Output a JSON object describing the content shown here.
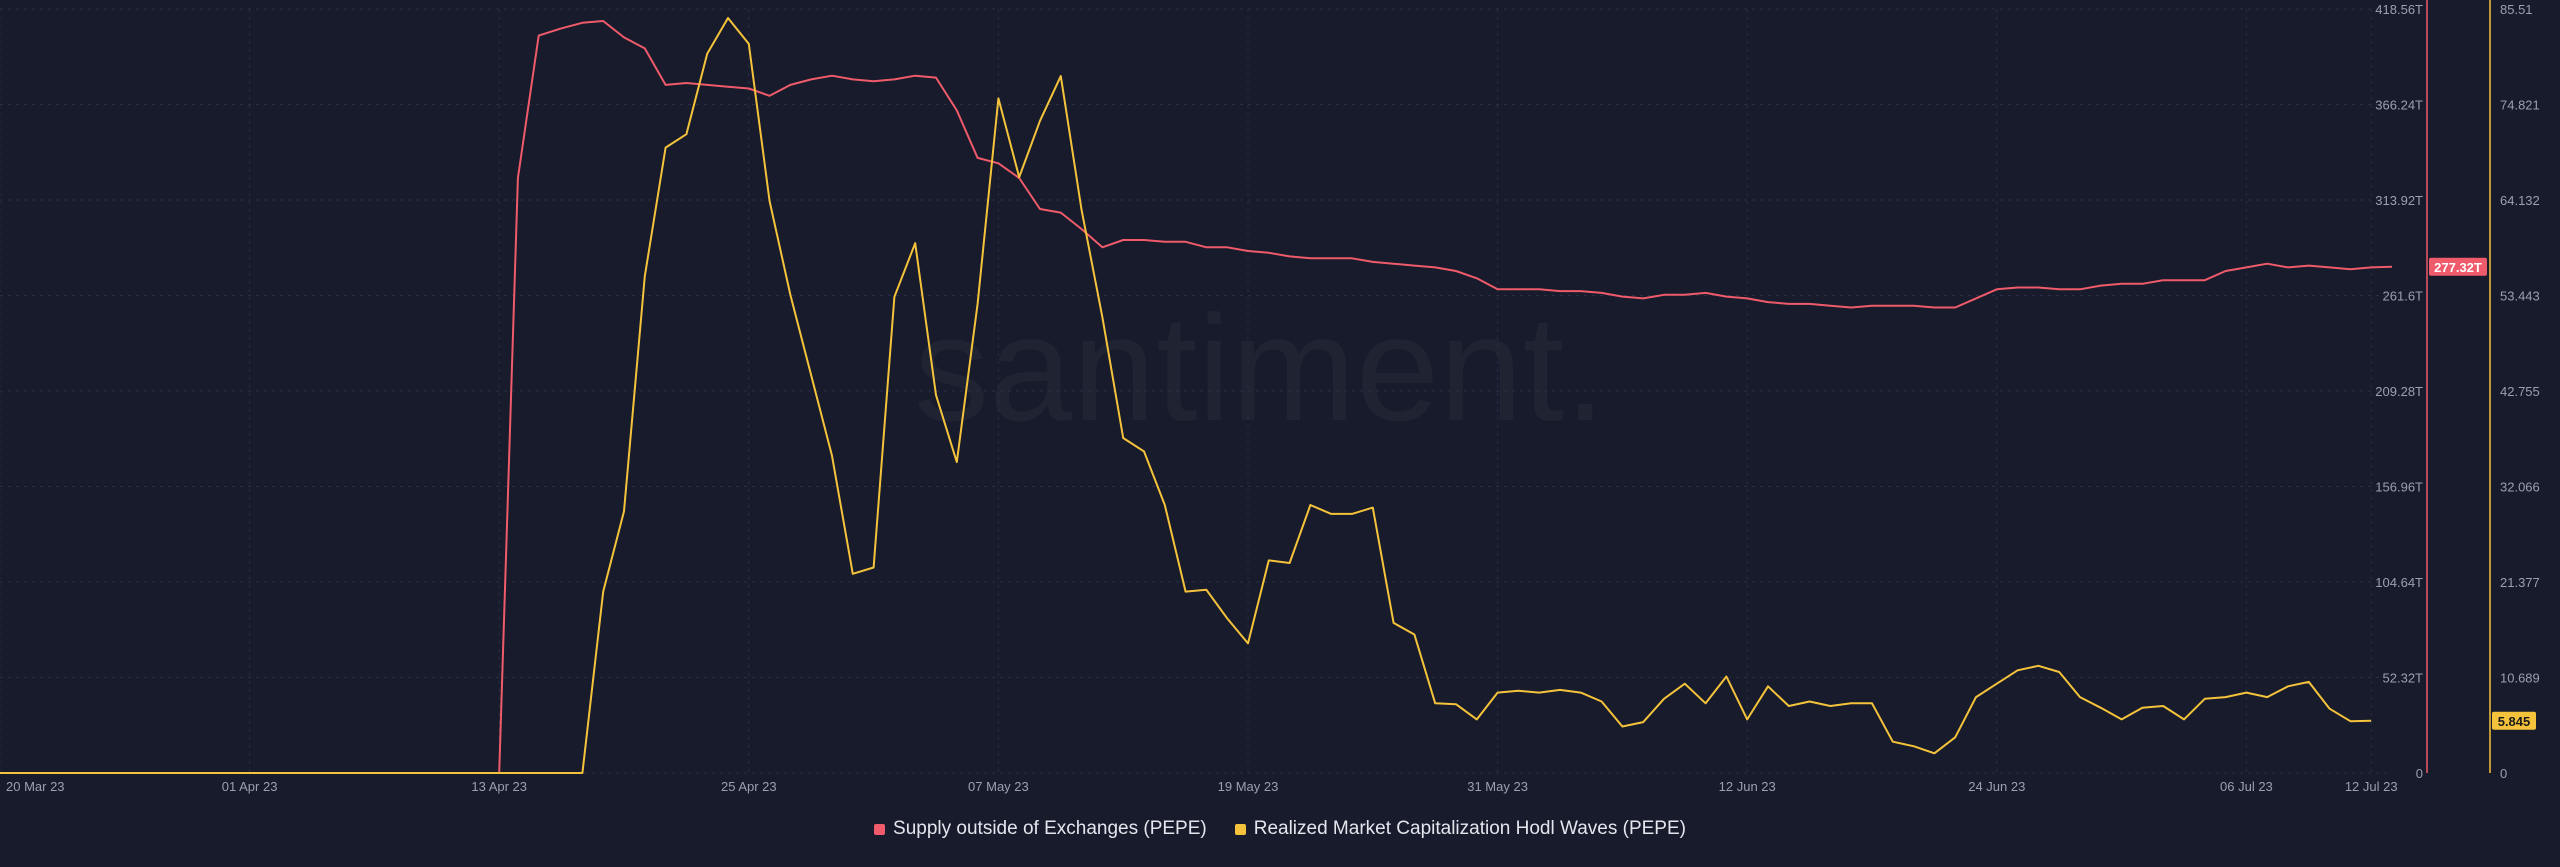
{
  "watermark": "santiment.",
  "legend": [
    {
      "name": "Supply outside of Exchanges (PEPE)",
      "color": "#ef5b6b"
    },
    {
      "name": "Realized Market Capitalization Hodl Waves (PEPE)",
      "color": "#f5c33b"
    }
  ],
  "colors": {
    "background": "#171b2b",
    "grid": "#2a2f45",
    "axis_text": "#9aa0b0",
    "supply": "#ef5b6b",
    "hodl": "#f5c33b"
  },
  "chart_data": {
    "type": "line",
    "x_tick_labels": [
      "20 Mar 23",
      "01 Apr 23",
      "13 Apr 23",
      "25 Apr 23",
      "07 May 23",
      "19 May 23",
      "31 May 23",
      "12 Jun 23",
      "24 Jun 23",
      "06 Jul 23",
      "12 Jul 23"
    ],
    "x_tick_days": [
      0,
      12,
      24,
      36,
      48,
      60,
      72,
      84,
      96,
      108,
      114
    ],
    "x_range_days": [
      0,
      115
    ],
    "grid": true,
    "legend_position": "bottom",
    "axes": {
      "left_ticks": [
        "418.56T",
        "366.24T",
        "313.92T",
        "261.6T",
        "209.28T",
        "156.96T",
        "104.64T",
        "52.32T",
        "0"
      ],
      "left_range": [
        0,
        418.56
      ],
      "right_ticks": [
        "85.51",
        "74.821",
        "64.132",
        "53.443",
        "42.755",
        "32.066",
        "21.377",
        "10.689",
        "0"
      ],
      "right_range": [
        0,
        85.51
      ]
    },
    "series": [
      {
        "name": "Supply outside of Exchanges (PEPE)",
        "axis": "left",
        "last_value_label": "277.32T",
        "points": [
          [
            0,
            0
          ],
          [
            23,
            0
          ],
          [
            24,
            0
          ],
          [
            24.9,
            326
          ],
          [
            25.9,
            404
          ],
          [
            27,
            408
          ],
          [
            28,
            411
          ],
          [
            29,
            412
          ],
          [
            30,
            403
          ],
          [
            31,
            397
          ],
          [
            32,
            377
          ],
          [
            33,
            378
          ],
          [
            34,
            377
          ],
          [
            35,
            376
          ],
          [
            36,
            375
          ],
          [
            37,
            371
          ],
          [
            38,
            377
          ],
          [
            39,
            380
          ],
          [
            40,
            382
          ],
          [
            41,
            380
          ],
          [
            42,
            379
          ],
          [
            43,
            380
          ],
          [
            44,
            382
          ],
          [
            45,
            381
          ],
          [
            46,
            363
          ],
          [
            47,
            337
          ],
          [
            48,
            334
          ],
          [
            49,
            326
          ],
          [
            50,
            309
          ],
          [
            51,
            307
          ],
          [
            52,
            298
          ],
          [
            53,
            288
          ],
          [
            54,
            292
          ],
          [
            55,
            292
          ],
          [
            56,
            291
          ],
          [
            57,
            291
          ],
          [
            58,
            288
          ],
          [
            59,
            288
          ],
          [
            60,
            286
          ],
          [
            61,
            285
          ],
          [
            62,
            283
          ],
          [
            63,
            282
          ],
          [
            64,
            282
          ],
          [
            65,
            282
          ],
          [
            66,
            280
          ],
          [
            67,
            279
          ],
          [
            68,
            278
          ],
          [
            69,
            277
          ],
          [
            70,
            275
          ],
          [
            71,
            271
          ],
          [
            72,
            265
          ],
          [
            73,
            265
          ],
          [
            74,
            265
          ],
          [
            75,
            264
          ],
          [
            76,
            264
          ],
          [
            77,
            263
          ],
          [
            78,
            261
          ],
          [
            79,
            260
          ],
          [
            80,
            262
          ],
          [
            81,
            262
          ],
          [
            82,
            263
          ],
          [
            83,
            261
          ],
          [
            84,
            260
          ],
          [
            85,
            258
          ],
          [
            86,
            257
          ],
          [
            87,
            257
          ],
          [
            88,
            256
          ],
          [
            89,
            255
          ],
          [
            90,
            256
          ],
          [
            91,
            256
          ],
          [
            92,
            256
          ],
          [
            93,
            255
          ],
          [
            94,
            255
          ],
          [
            95,
            260
          ],
          [
            96,
            265
          ],
          [
            97,
            266
          ],
          [
            98,
            266
          ],
          [
            99,
            265
          ],
          [
            100,
            265
          ],
          [
            101,
            267
          ],
          [
            102,
            268
          ],
          [
            103,
            268
          ],
          [
            104,
            270
          ],
          [
            105,
            270
          ],
          [
            106,
            270
          ],
          [
            107,
            275
          ],
          [
            108,
            277
          ],
          [
            109,
            279
          ],
          [
            110,
            277
          ],
          [
            111,
            278
          ],
          [
            112,
            277
          ],
          [
            113,
            276
          ],
          [
            114,
            277
          ],
          [
            115,
            277.32
          ]
        ]
      },
      {
        "name": "Realized Market Capitalization Hodl Waves (PEPE)",
        "axis": "right",
        "last_value_label": "5.845",
        "points": [
          [
            0,
            0
          ],
          [
            27,
            0
          ],
          [
            28,
            0
          ],
          [
            29,
            20.3
          ],
          [
            30,
            29.3
          ],
          [
            31,
            55.6
          ],
          [
            32,
            70
          ],
          [
            33,
            71.5
          ],
          [
            34,
            80.5
          ],
          [
            35,
            84.5
          ],
          [
            36,
            81.6
          ],
          [
            37,
            64
          ],
          [
            38,
            53.5
          ],
          [
            39,
            44.5
          ],
          [
            40,
            35.5
          ],
          [
            41,
            22.3
          ],
          [
            42,
            23
          ],
          [
            43,
            53.3
          ],
          [
            44,
            59.3
          ],
          [
            45,
            42.3
          ],
          [
            46,
            34.8
          ],
          [
            47,
            52.5
          ],
          [
            48,
            75.5
          ],
          [
            49,
            66.7
          ],
          [
            50,
            73
          ],
          [
            51,
            78
          ],
          [
            52,
            63
          ],
          [
            53,
            51
          ],
          [
            54,
            37.5
          ],
          [
            55,
            36
          ],
          [
            56,
            30
          ],
          [
            57,
            20.3
          ],
          [
            58,
            20.5
          ],
          [
            59,
            17.3
          ],
          [
            60,
            14.5
          ],
          [
            61,
            23.8
          ],
          [
            62,
            23.5
          ],
          [
            63,
            30
          ],
          [
            64,
            29
          ],
          [
            65,
            29
          ],
          [
            66,
            29.7
          ],
          [
            67,
            16.8
          ],
          [
            68,
            15.5
          ],
          [
            69,
            7.8
          ],
          [
            70,
            7.7
          ],
          [
            71,
            6
          ],
          [
            72,
            9
          ],
          [
            73,
            9.2
          ],
          [
            74,
            9
          ],
          [
            75,
            9.3
          ],
          [
            76,
            9
          ],
          [
            77,
            8
          ],
          [
            78,
            5.2
          ],
          [
            79,
            5.7
          ],
          [
            80,
            8.3
          ],
          [
            81,
            10
          ],
          [
            82,
            7.8
          ],
          [
            83,
            10.8
          ],
          [
            84,
            6
          ],
          [
            85,
            9.7
          ],
          [
            86,
            7.5
          ],
          [
            87,
            8
          ],
          [
            88,
            7.5
          ],
          [
            89,
            7.8
          ],
          [
            90,
            7.8
          ],
          [
            91,
            3.5
          ],
          [
            92,
            3
          ],
          [
            93,
            2.2
          ],
          [
            94,
            4
          ],
          [
            95,
            8.5
          ],
          [
            96,
            10
          ],
          [
            97,
            11.5
          ],
          [
            98,
            12
          ],
          [
            99,
            11.3
          ],
          [
            100,
            8.5
          ],
          [
            101,
            7.3
          ],
          [
            102,
            6
          ],
          [
            103,
            7.3
          ],
          [
            104,
            7.5
          ],
          [
            105,
            6
          ],
          [
            106,
            8.3
          ],
          [
            107,
            8.5
          ],
          [
            108,
            9
          ],
          [
            109,
            8.5
          ],
          [
            110,
            9.7
          ],
          [
            111,
            10.2
          ],
          [
            112,
            7.2
          ],
          [
            113,
            5.8
          ],
          [
            114,
            5.845
          ]
        ]
      }
    ]
  }
}
